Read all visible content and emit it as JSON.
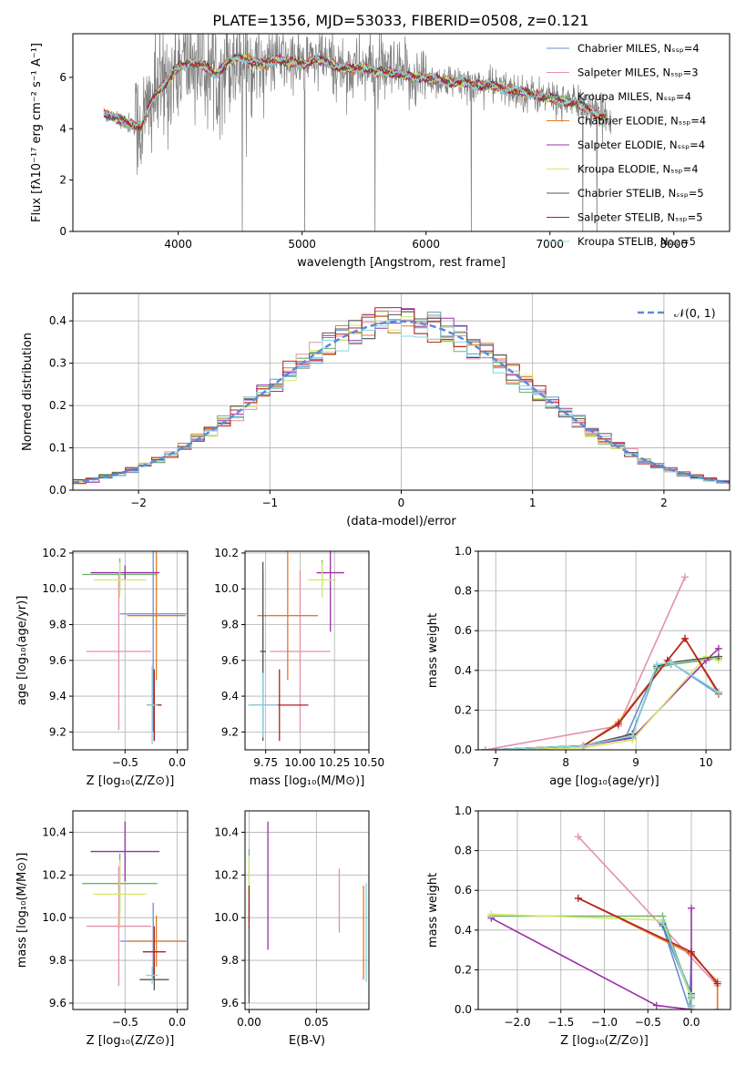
{
  "figure_title": "PLATE=1356, MJD=53033, FIBERID=0508, z=0.121",
  "series_colors": [
    "#6a8fd0",
    "#e58fae",
    "#6bb36b",
    "#e07b26",
    "#9b2ea8",
    "#d6e86a",
    "#555555",
    "#b02020",
    "#88d4df"
  ],
  "chart_data": [
    {
      "type": "line",
      "xlabel": "wavelength [Angstrom, rest frame]",
      "ylabel": "Flux [fλ10⁻¹⁷ erg cm⁻² s⁻¹ A⁻¹]",
      "xlim": [
        3150,
        8450
      ],
      "ylim": [
        0,
        7.7
      ],
      "xticks": [
        4000,
        5000,
        6000,
        7000,
        8000
      ],
      "yticks": [
        0,
        2,
        4,
        6
      ],
      "legend_placement": "upper-right",
      "legend": [
        "Chabrier MILES, Nₛₛₚ=4",
        "Salpeter MILES, Nₛₛₚ=3",
        "Kroupa MILES, Nₛₛₚ=4",
        "Chabrier ELODIE, Nₛₛₚ=4",
        "Salpeter ELODIE, Nₛₛₚ=4",
        "Kroupa ELODIE, Nₛₛₚ=4",
        "Chabrier STELIB, Nₛₛₚ=5",
        "Salpeter STELIB, Nₛₛₚ=5",
        "Kroupa STELIB, Nₛₛₚ=5"
      ],
      "model_curve": {
        "x": [
          3400,
          3500,
          3600,
          3700,
          3800,
          3900,
          4000,
          4100,
          4200,
          4300,
          4400,
          4500,
          4600,
          4700,
          4800,
          4900,
          5000,
          5100,
          5200,
          5300,
          5400,
          5500,
          5600,
          5700,
          5800,
          5900,
          6000,
          6100,
          6200,
          6300,
          6400,
          6500,
          6600,
          6700,
          6800,
          6900,
          7000,
          7100,
          7200,
          7300,
          7400
        ],
        "y": [
          4.6,
          4.4,
          4.2,
          4.1,
          5.2,
          5.8,
          6.4,
          6.6,
          6.5,
          6.1,
          6.6,
          6.8,
          6.6,
          6.5,
          6.7,
          6.6,
          6.5,
          6.7,
          6.6,
          6.4,
          6.3,
          6.4,
          6.2,
          6.2,
          6.1,
          6.0,
          6.0,
          5.9,
          5.8,
          5.8,
          5.7,
          5.7,
          5.6,
          5.5,
          5.4,
          5.3,
          5.2,
          5.1,
          5.0,
          4.8,
          4.5
        ]
      },
      "data_noise_range": [
        3500,
        7500
      ]
    },
    {
      "type": "bar",
      "xlabel": "(data-model)/error",
      "ylabel": "Normed distribution",
      "xlim": [
        -2.5,
        2.5
      ],
      "ylim": [
        0,
        0.465
      ],
      "xticks": [
        -2,
        -1,
        0,
        1,
        2
      ],
      "yticks": [
        0.0,
        0.1,
        0.2,
        0.3,
        0.4
      ],
      "legend": [
        "𝒩(0, 1)"
      ],
      "legend_placement": "upper-right",
      "bin_width": 0.1,
      "gaussian": {
        "mean": 0,
        "sigma": 1
      }
    },
    {
      "type": "scatter",
      "xlabel": "Z [log₁₀(Z/Z⊙)]",
      "ylabel": "age  [log₁₀(age/yr)]",
      "xlim": [
        -1.0,
        0.1
      ],
      "ylim": [
        9.1,
        10.21
      ],
      "xticks": [
        -0.5,
        0.0
      ],
      "yticks": [
        9.2,
        9.4,
        9.6,
        9.8,
        10.0,
        10.2
      ],
      "points": [
        {
          "x": -0.23,
          "y": 9.86,
          "xerr": 0.32,
          "yerr": 0.66
        },
        {
          "x": -0.56,
          "y": 9.65,
          "xerr": 0.31,
          "yerr": 0.44
        },
        {
          "x": -0.55,
          "y": 10.08,
          "xerr": 0.36,
          "yerr": 0.09
        },
        {
          "x": -0.2,
          "y": 9.85,
          "xerr": 0.28,
          "yerr": 0.36
        },
        {
          "x": -0.5,
          "y": 10.09,
          "xerr": 0.33,
          "yerr": 0.04
        },
        {
          "x": -0.55,
          "y": 10.05,
          "xerr": 0.25,
          "yerr": 0.1
        },
        {
          "x": -0.22,
          "y": 9.35,
          "xerr": 0.07,
          "yerr": 0.2
        },
        {
          "x": -0.22,
          "y": 9.35,
          "xerr": 0.07,
          "yerr": 0.2
        },
        {
          "x": -0.24,
          "y": 9.35,
          "xerr": 0.05,
          "yerr": 0.22
        }
      ]
    },
    {
      "type": "scatter",
      "xlabel": "mass [log₁₀(M/M⊙)]",
      "ylabel": "",
      "xlim": [
        9.6,
        10.5
      ],
      "ylim": [
        9.1,
        10.21
      ],
      "xticks": [
        9.75,
        10.0,
        10.25,
        10.5
      ],
      "yticks": [
        9.2,
        9.4,
        9.6,
        9.8,
        10.0,
        10.2
      ],
      "points": [
        {
          "x": 9.73,
          "y": 9.65,
          "xerr": 0.02,
          "yerr": 0.45
        },
        {
          "x": 10.0,
          "y": 9.65,
          "xerr": 0.22,
          "yerr": 0.45
        },
        {
          "x": 10.16,
          "y": 10.09,
          "xerr": 0.02,
          "yerr": 0.07
        },
        {
          "x": 9.91,
          "y": 9.85,
          "xerr": 0.22,
          "yerr": 0.36
        },
        {
          "x": 10.22,
          "y": 10.09,
          "xerr": 0.1,
          "yerr": 0.33
        },
        {
          "x": 10.16,
          "y": 10.05,
          "xerr": 0.1,
          "yerr": 0.1
        },
        {
          "x": 9.73,
          "y": 9.65,
          "xerr": 0.02,
          "yerr": 0.5
        },
        {
          "x": 9.85,
          "y": 9.35,
          "xerr": 0.21,
          "yerr": 0.2
        },
        {
          "x": 9.73,
          "y": 9.35,
          "xerr": 0.11,
          "yerr": 0.18
        }
      ]
    },
    {
      "type": "line",
      "xlabel": "age  [log₁₀(age/yr)]",
      "ylabel": "mass weight",
      "xlim": [
        6.75,
        10.35
      ],
      "ylim": [
        0,
        1.0
      ],
      "xticks": [
        7,
        8,
        9,
        10
      ],
      "yticks": [
        0.0,
        0.2,
        0.4,
        0.6,
        0.8,
        1.0
      ],
      "series": [
        {
          "x": [
            6.85,
            8.25,
            8.85,
            9.3,
            9.5,
            10.18
          ],
          "y": [
            0.0,
            0.02,
            0.06,
            0.42,
            0.44,
            0.28
          ]
        },
        {
          "x": [
            6.85,
            8.75,
            9.7
          ],
          "y": [
            0.0,
            0.12,
            0.87
          ]
        },
        {
          "x": [
            6.85,
            8.25,
            8.95,
            9.3,
            9.5,
            10.18
          ],
          "y": [
            0.0,
            0.02,
            0.08,
            0.41,
            0.43,
            0.46
          ]
        },
        {
          "x": [
            6.85,
            8.25,
            8.75,
            9.45,
            9.7,
            10.18
          ],
          "y": [
            0.0,
            0.02,
            0.14,
            0.45,
            0.56,
            0.28
          ]
        },
        {
          "x": [
            6.85,
            8.25,
            8.95,
            10.0,
            10.18
          ],
          "y": [
            0.0,
            0.02,
            0.06,
            0.45,
            0.51
          ]
        },
        {
          "x": [
            6.85,
            8.25,
            8.95,
            10.0,
            10.18
          ],
          "y": [
            0.0,
            0.01,
            0.05,
            0.47,
            0.45
          ]
        },
        {
          "x": [
            6.85,
            8.25,
            8.95,
            9.3,
            9.5,
            10.18
          ],
          "y": [
            0.0,
            0.02,
            0.08,
            0.42,
            0.44,
            0.47
          ]
        },
        {
          "x": [
            6.85,
            8.25,
            8.75,
            9.45,
            9.7,
            10.18
          ],
          "y": [
            0.0,
            0.02,
            0.13,
            0.45,
            0.56,
            0.29
          ]
        },
        {
          "x": [
            6.85,
            8.25,
            8.95,
            9.3,
            9.5,
            10.18
          ],
          "y": [
            0.0,
            0.02,
            0.07,
            0.43,
            0.44,
            0.29
          ]
        }
      ]
    },
    {
      "type": "scatter",
      "xlabel": "Z [log₁₀(Z/Z⊙)]",
      "ylabel": "mass [log₁₀(M/M⊙)]",
      "xlim": [
        -1.0,
        0.1
      ],
      "ylim": [
        9.57,
        10.5
      ],
      "xticks": [
        -0.5,
        0.0
      ],
      "yticks": [
        9.6,
        9.8,
        10.0,
        10.2,
        10.4
      ],
      "points": [
        {
          "x": -0.23,
          "y": 9.89,
          "xerr": 0.32,
          "yerr": 0.18
        },
        {
          "x": -0.56,
          "y": 9.96,
          "xerr": 0.31,
          "yerr": 0.28
        },
        {
          "x": -0.55,
          "y": 10.16,
          "xerr": 0.36,
          "yerr": 0.14
        },
        {
          "x": -0.2,
          "y": 9.89,
          "xerr": 0.28,
          "yerr": 0.12
        },
        {
          "x": -0.5,
          "y": 10.31,
          "xerr": 0.33,
          "yerr": 0.14
        },
        {
          "x": -0.55,
          "y": 10.11,
          "xerr": 0.25,
          "yerr": 0.16
        },
        {
          "x": -0.22,
          "y": 9.71,
          "xerr": 0.14,
          "yerr": 0.05
        },
        {
          "x": -0.22,
          "y": 9.84,
          "xerr": 0.11,
          "yerr": 0.12
        },
        {
          "x": -0.24,
          "y": 9.73,
          "xerr": 0.06,
          "yerr": 0.04
        }
      ]
    },
    {
      "type": "scatter",
      "xlabel": "E(B-V)",
      "ylabel": "",
      "xlim": [
        -0.003,
        0.089
      ],
      "ylim": [
        9.57,
        10.5
      ],
      "xticks": [
        0.0,
        0.05
      ],
      "yticks": [
        9.6,
        9.8,
        10.0,
        10.2,
        10.4
      ],
      "points": [
        {
          "x": 0.0,
          "y": 9.85,
          "yerr": 0.22
        },
        {
          "x": 0.067,
          "y": 10.08,
          "yerr": 0.15
        },
        {
          "x": 0.0,
          "y": 10.15,
          "yerr": 0.17
        },
        {
          "x": 0.085,
          "y": 9.93,
          "yerr": 0.22
        },
        {
          "x": 0.014,
          "y": 10.15,
          "yerr": 0.3
        },
        {
          "x": 0.0,
          "y": 10.17,
          "yerr": 0.12
        },
        {
          "x": 0.0,
          "y": 9.78,
          "yerr": 0.18
        },
        {
          "x": 0.0,
          "y": 10.05,
          "yerr": 0.1
        },
        {
          "x": 0.087,
          "y": 9.93,
          "yerr": 0.23
        }
      ]
    },
    {
      "type": "line",
      "xlabel": "Z [log₁₀(Z/Z⊙)]",
      "ylabel": "mass weight",
      "xlim": [
        -2.45,
        0.45
      ],
      "ylim": [
        0,
        1.0
      ],
      "xticks": [
        -2.0,
        -1.5,
        -1.0,
        -0.5,
        0.0
      ],
      "yticks": [
        0.0,
        0.2,
        0.4,
        0.6,
        0.8,
        1.0
      ],
      "series": [
        {
          "x": [
            0.0,
            -0.02,
            -0.33,
            0.0,
            0.0
          ],
          "y": [
            0.29,
            0.0,
            0.42,
            0.06,
            0.02
          ]
        },
        {
          "x": [
            -1.3,
            0.3,
            0.3
          ],
          "y": [
            0.87,
            0.12,
            0.0
          ]
        },
        {
          "x": [
            -2.3,
            -0.33,
            0.0,
            0.0
          ],
          "y": [
            0.47,
            0.47,
            0.06,
            0.02
          ]
        },
        {
          "x": [
            -1.3,
            0.0,
            0.3,
            0.3
          ],
          "y": [
            0.56,
            0.28,
            0.14,
            0.0
          ]
        },
        {
          "x": [
            -2.3,
            -0.4,
            0.0,
            0.0
          ],
          "y": [
            0.46,
            0.02,
            0.0,
            0.51
          ]
        },
        {
          "x": [
            -2.3,
            -0.33,
            0.0,
            0.0
          ],
          "y": [
            0.48,
            0.45,
            0.05,
            0.01
          ]
        },
        {
          "x": [
            -0.33,
            0.0,
            0.0
          ],
          "y": [
            0.43,
            0.08,
            0.02
          ]
        },
        {
          "x": [
            -1.3,
            0.0,
            0.3
          ],
          "y": [
            0.56,
            0.29,
            0.13
          ]
        },
        {
          "x": [
            -0.33,
            0.0,
            0.0
          ],
          "y": [
            0.44,
            0.07,
            0.02
          ]
        }
      ]
    }
  ]
}
